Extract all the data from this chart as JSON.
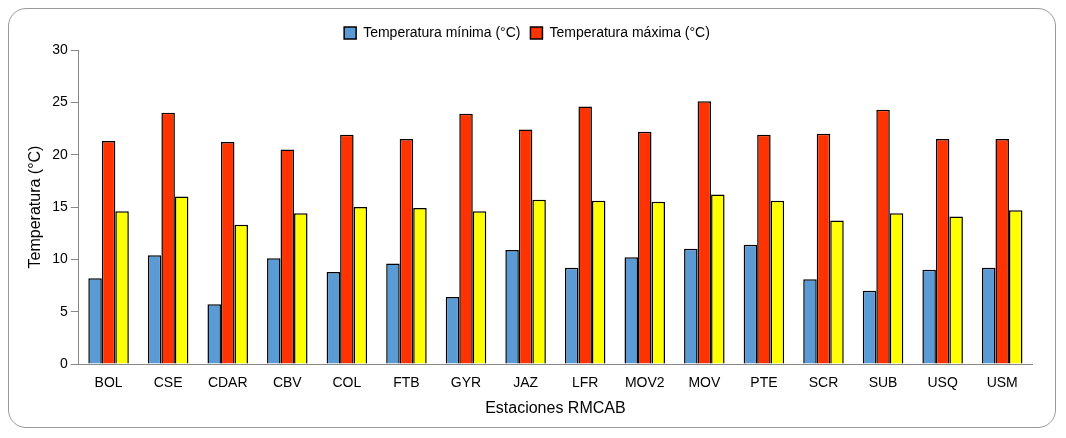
{
  "chart_data": {
    "type": "bar",
    "xlabel": "Estaciones RMCAB",
    "ylabel": "Temperatura (°C)",
    "categories": [
      "BOL",
      "CSE",
      "CDAR",
      "CBV",
      "COL",
      "FTB",
      "GYR",
      "JAZ",
      "LFR",
      "MOV2",
      "MOV",
      "PTE",
      "SCR",
      "SUB",
      "USQ",
      "USM"
    ],
    "series": [
      {
        "name": "Temperatura mínima (°C)",
        "color": "#5b9bd5",
        "values": [
          8.2,
          10.4,
          5.7,
          10.1,
          8.8,
          9.6,
          6.4,
          10.9,
          9.2,
          10.2,
          11.0,
          11.4,
          8.1,
          7.0,
          9.0,
          9.2
        ]
      },
      {
        "name": "Temperatura máxima (°C)",
        "color": "#ff3300",
        "values": [
          21.3,
          24.0,
          21.2,
          20.5,
          21.9,
          21.5,
          23.9,
          22.4,
          24.6,
          22.2,
          25.1,
          21.9,
          22.0,
          24.3,
          21.5,
          21.5
        ]
      },
      {
        "color": "#ffff00",
        "values": [
          14.6,
          16.0,
          13.3,
          14.4,
          15.0,
          14.9,
          14.6,
          15.7,
          15.6,
          15.5,
          16.2,
          15.6,
          13.7,
          14.4,
          14.1,
          14.7
        ]
      }
    ],
    "ylim": [
      0,
      30
    ],
    "yticks": [
      0,
      5,
      10,
      15,
      20,
      25,
      30
    ],
    "grid": false,
    "legend": "top"
  }
}
